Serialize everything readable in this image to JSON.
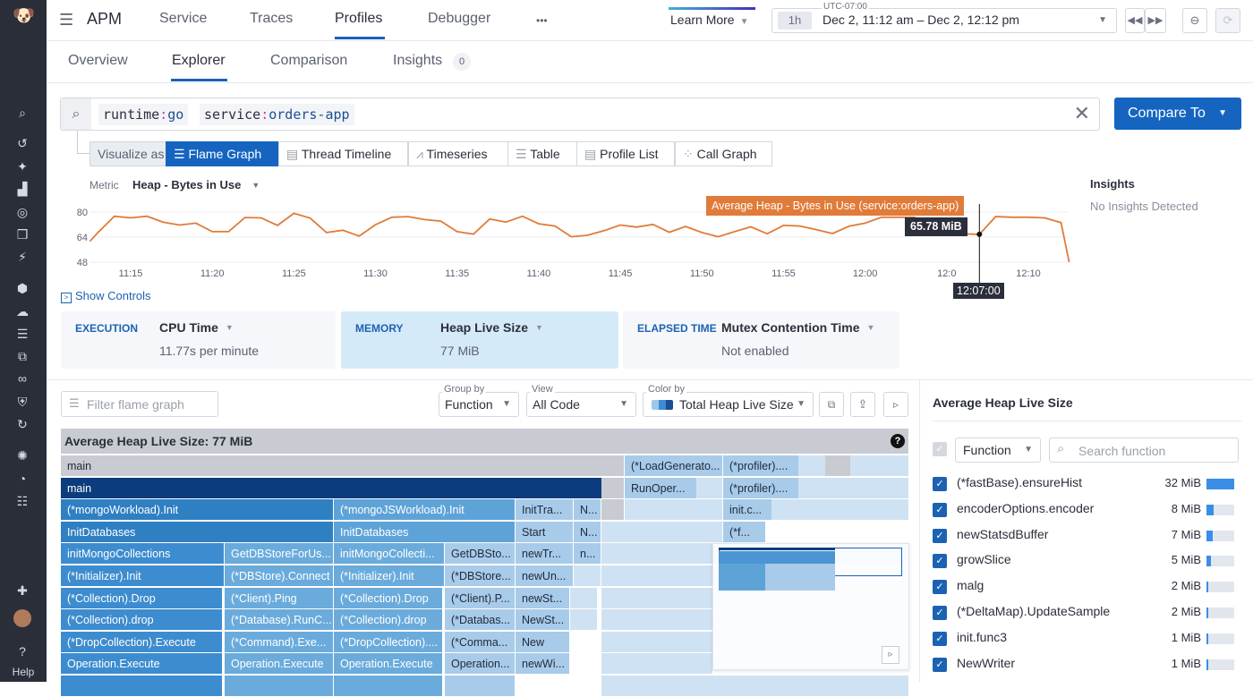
{
  "sidebar": {
    "help_label": "Help",
    "icons": [
      "logo-icon",
      "search-icon",
      "history-icon",
      "sparkle-icon",
      "chart-icon",
      "target-icon",
      "layers-icon",
      "bolt-icon",
      "hexagons-icon",
      "cloud-cost-icon",
      "apm-icon",
      "dashboards-icon",
      "link-icon",
      "shield-icon",
      "refresh-sparkle-icon",
      "bug-icon",
      "gauge-icon",
      "synthetics-icon",
      "integrations-icon",
      "avatar",
      "help-icon"
    ]
  },
  "header": {
    "app": "APM",
    "tabs": [
      "Service",
      "Traces",
      "Profiles",
      "Debugger"
    ],
    "active_tab": "Profiles",
    "more": "•••",
    "learn_more": "Learn More",
    "timezone": "UTC-07:00",
    "range_badge": "1h",
    "range": "Dec 2, 11:12 am – Dec 2, 12:12 pm"
  },
  "subtabs": {
    "items": [
      "Overview",
      "Explorer",
      "Comparison",
      "Insights"
    ],
    "active": "Explorer",
    "insights_count": "0"
  },
  "search": {
    "tags": [
      {
        "key": "runtime",
        "value": "go"
      },
      {
        "key": "service",
        "value": "orders-app"
      }
    ],
    "compare_label": "Compare To"
  },
  "visualize": {
    "label": "Visualize as",
    "options": [
      "Flame Graph",
      "Thread Timeline",
      "Timeseries",
      "Table",
      "Profile List",
      "Call Graph"
    ],
    "active": "Flame Graph"
  },
  "metric": {
    "label": "Metric",
    "value": "Heap - Bytes in Use"
  },
  "insights": {
    "title": "Insights",
    "text": "No Insights Detected"
  },
  "chart_data": {
    "type": "line",
    "xlabel": "",
    "ylabel": "",
    "ylim": [
      48,
      84
    ],
    "y_ticks": [
      "48",
      "64",
      "80"
    ],
    "x_ticks": [
      "11:15",
      "11:20",
      "11:25",
      "11:30",
      "11:35",
      "11:40",
      "11:45",
      "11:50",
      "11:55",
      "12:00",
      "12:0",
      "12:10"
    ],
    "x": [
      "11:12:30",
      "11:13",
      "11:14",
      "11:15",
      "11:16",
      "11:17",
      "11:18",
      "11:19",
      "11:20",
      "11:21",
      "11:22",
      "11:23",
      "11:24",
      "11:25",
      "11:26",
      "11:27",
      "11:28",
      "11:29",
      "11:30",
      "11:31",
      "11:32",
      "11:33",
      "11:34",
      "11:35",
      "11:36",
      "11:37",
      "11:38",
      "11:39",
      "11:40",
      "11:41",
      "11:42",
      "11:43",
      "11:44",
      "11:45",
      "11:46",
      "11:47",
      "11:48",
      "11:49",
      "11:50",
      "11:51",
      "11:52",
      "11:53",
      "11:54",
      "11:55",
      "11:56",
      "11:57",
      "11:58",
      "11:59",
      "12:00",
      "12:01",
      "12:02",
      "12:03",
      "12:06",
      "12:07",
      "12:08",
      "12:09",
      "12:10",
      "12:11",
      "12:12",
      "12:12:30"
    ],
    "values": [
      61.3,
      67,
      77.3,
      76.3,
      77.3,
      73.5,
      71.7,
      72.9,
      67.5,
      67.5,
      76.5,
      76.3,
      71.5,
      79.2,
      76.1,
      66.9,
      68.4,
      64.6,
      71.9,
      76.7,
      77.1,
      75.2,
      74.2,
      67.5,
      65.9,
      75.6,
      73.6,
      77.3,
      72.5,
      71.1,
      64.2,
      65.2,
      68.1,
      71.7,
      70.4,
      72.1,
      67.1,
      70.8,
      66.9,
      64.2,
      67.5,
      70.6,
      66.1,
      71.5,
      71.1,
      68.8,
      66.3,
      70.9,
      72.9,
      76.7,
      76.7,
      76.7,
      66.1,
      65.78,
      77.1,
      76.7,
      76.7,
      76.3,
      73.3,
      48
    ],
    "series_color": "#e07b39",
    "tooltip": {
      "series": "Average Heap - Bytes in Use (service:orders-app)",
      "value": "65.78 MiB",
      "time": "12:07:00"
    },
    "grid": true
  },
  "show_controls": "Show Controls",
  "cards": [
    {
      "kind": "EXECUTION",
      "title": "CPU Time",
      "value": "11.77s per minute"
    },
    {
      "kind": "MEMORY",
      "title": "Heap Live Size",
      "value": "77 MiB"
    },
    {
      "kind": "ELAPSED TIME",
      "title": "Mutex Contention Time",
      "value": "Not enabled"
    }
  ],
  "flame": {
    "filter_placeholder": "Filter flame graph",
    "group_by": {
      "label": "Group by",
      "value": "Function"
    },
    "view": {
      "label": "View",
      "value": "All Code"
    },
    "color_by": {
      "label": "Color by",
      "value": "Total Heap Live Size"
    },
    "title": "Average Heap Live Size: 77 MiB",
    "help": "?",
    "frames": [
      "main",
      "(*LoadGenerato...",
      "(*profiler)....",
      "main",
      "RunOper...",
      "(*profiler)....",
      "(*mongoWorkload).Init",
      "(*mongoJSWorkload).Init",
      "InitTra...",
      "N...",
      "init.c...",
      "InitDatabases",
      "InitDatabases",
      "Start",
      "N...",
      "(*f...",
      "initMongoCollections",
      "GetDBStoreForUs...",
      "initMongoCollecti...",
      "GetDBSto...",
      "newTr...",
      "n...",
      "(*Initializer).Init",
      "(*DBStore).Connect",
      "(*Initializer).Init",
      "(*DBStore...",
      "newUn...",
      "(*Collection).Drop",
      "(*Client).Ping",
      "(*Collection).Drop",
      "(*Client).P...",
      "newSt...",
      "(*Collection).drop",
      "(*Database).RunC...",
      "(*Collection).drop",
      "(*Databas...",
      "NewSt...",
      "(*DropCollection).Execute",
      "(*Command).Exe...",
      "(*DropCollection)....",
      "(*Comma...",
      "New",
      "Operation.Execute",
      "Operation.Execute",
      "Operation.Execute",
      "Operation...",
      "newWi..."
    ]
  },
  "panel": {
    "title": "Average Heap Live Size",
    "group": "Function",
    "search_placeholder": "Search function",
    "functions": [
      {
        "name": "(*fastBase).ensureHist",
        "value": "32 MiB",
        "fraction": 1.0
      },
      {
        "name": "encoderOptions.encoder",
        "value": "8 MiB",
        "fraction": 0.25
      },
      {
        "name": "newStatsdBuffer",
        "value": "7 MiB",
        "fraction": 0.22
      },
      {
        "name": "growSlice",
        "value": "5 MiB",
        "fraction": 0.15
      },
      {
        "name": "malg",
        "value": "2 MiB",
        "fraction": 0.06
      },
      {
        "name": "(*DeltaMap).UpdateSample",
        "value": "2 MiB",
        "fraction": 0.06
      },
      {
        "name": "init.func3",
        "value": "1 MiB",
        "fraction": 0.03
      },
      {
        "name": "NewWriter",
        "value": "1 MiB",
        "fraction": 0.03
      }
    ]
  }
}
